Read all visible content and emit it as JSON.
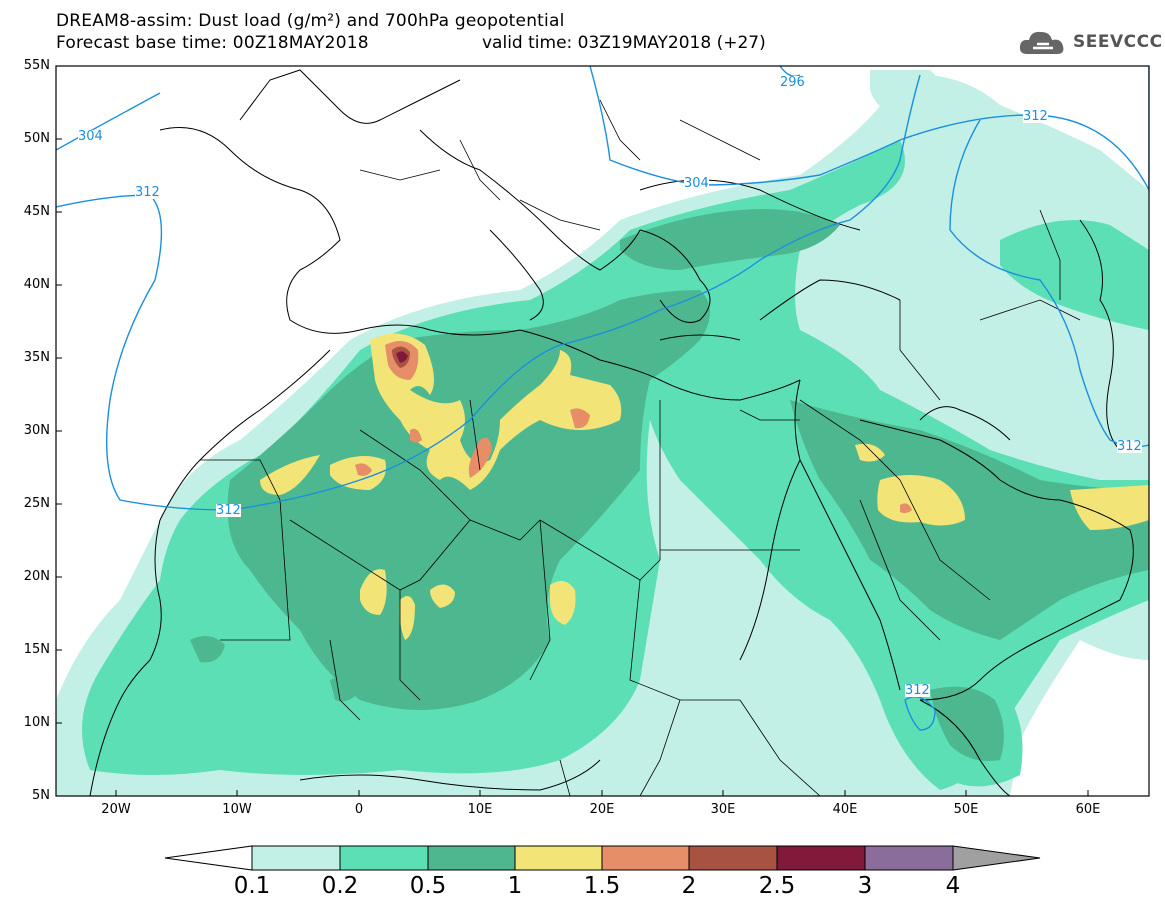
{
  "header": {
    "title_line1": "DREAM8-assim: Dust load (g/m²) and 700hPa geopotential",
    "forecast_base": "Forecast base time: 00Z18MAY2018",
    "valid_time": "valid time: 03Z19MAY2018 (+27)"
  },
  "logo": {
    "text": "SEEVCCC",
    "icon": "cloud-icon"
  },
  "map": {
    "lat_labels": [
      "55N",
      "50N",
      "45N",
      "40N",
      "35N",
      "30N",
      "25N",
      "20N",
      "15N",
      "10N",
      "5N"
    ],
    "lon_labels": [
      "20W",
      "10W",
      "0",
      "10E",
      "20E",
      "30E",
      "40E",
      "50E",
      "60E"
    ],
    "contour_labels": [
      "296",
      "304",
      "304",
      "312",
      "312",
      "312",
      "312",
      "312"
    ]
  },
  "colorbar": {
    "labels": [
      "0.1",
      "0.2",
      "0.5",
      "1",
      "1.5",
      "2",
      "2.5",
      "3",
      "4"
    ],
    "colors": [
      "#c2efe6",
      "#5ddfb6",
      "#4db88f",
      "#f2e476",
      "#e68e68",
      "#a85242",
      "#80193a",
      "#8a6d9a"
    ],
    "under_color": "#ffffff",
    "over_color": "#a0a0a0"
  }
}
